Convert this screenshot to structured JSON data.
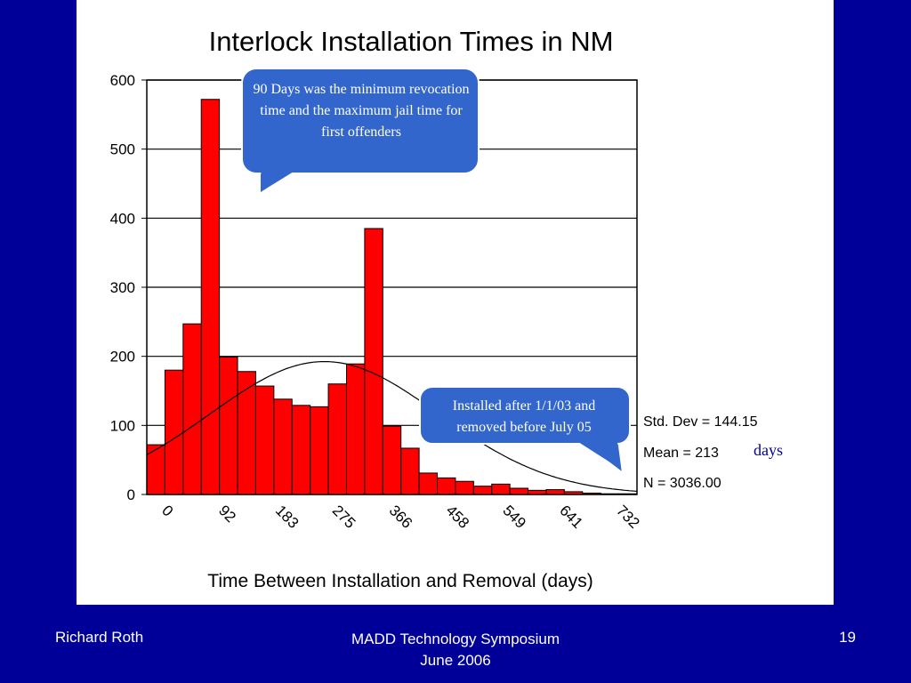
{
  "chart_data": {
    "type": "bar",
    "title": "Interlock Installation Times in NM",
    "xlabel": "Time Between Installation and Removal (days)",
    "ylabel": "",
    "ylim": [
      0,
      600
    ],
    "yticks": [
      0,
      100,
      200,
      300,
      400,
      500,
      600
    ],
    "xtick_labels": [
      "0",
      "92",
      "183",
      "275",
      "366",
      "458",
      "549",
      "641",
      "732"
    ],
    "values": [
      72,
      180,
      247,
      572,
      199,
      178,
      157,
      138,
      129,
      127,
      160,
      189,
      385,
      99,
      67,
      31,
      24,
      19,
      12,
      15,
      9,
      6,
      7,
      4,
      2,
      1,
      1
    ],
    "grid": true,
    "bar_color": "#ff0000",
    "normal_curve": {
      "mean": 213,
      "std": 144.15,
      "n": 3036
    },
    "stats": {
      "std": "Std. Dev = 144.15",
      "mean": "Mean = 213",
      "n": "N = 3036.00"
    },
    "stats_unit": "days"
  },
  "callouts": [
    {
      "text": "90 Days was the minimum revocation time and the maximum jail time for first offenders"
    },
    {
      "text": "Installed after 1/1/03 and removed before July 05"
    }
  ],
  "footer": {
    "left": "Richard Roth",
    "center_line1": "MADD Technology Symposium",
    "center_line2": "June 2006",
    "right": "19"
  },
  "colors": {
    "background": "#000099",
    "panel": "#ffffff",
    "bars": "#ff0000",
    "callout": "#3366cc"
  }
}
